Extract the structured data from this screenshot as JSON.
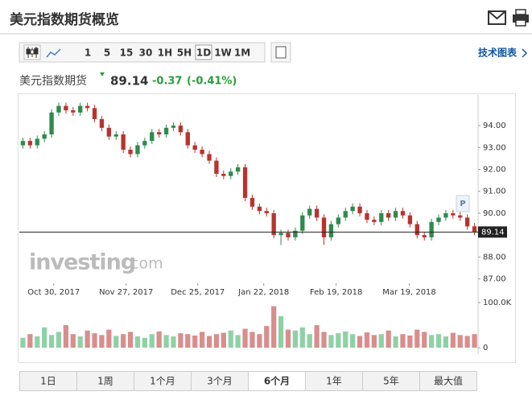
{
  "header": {
    "title": "美元指数期货概览"
  },
  "toolbar": {
    "intervals": [
      "1",
      "5",
      "15",
      "30",
      "1H",
      "5H",
      "1D",
      "1W",
      "1M"
    ],
    "selected_interval": 6,
    "link": "技术图表"
  },
  "quote": {
    "name": "美元指数期货",
    "price": 89.14,
    "change": -0.37,
    "change_pct": "(-0.41%)"
  },
  "chart_data": {
    "type": "candlestick",
    "open": [
      93.1,
      93.3,
      93.1,
      93.4,
      93.6,
      94.6,
      94.9,
      94.7,
      94.6,
      94.9,
      94.8,
      94.3,
      93.9,
      93.5,
      93.6,
      92.9,
      92.7,
      93.1,
      93.3,
      93.7,
      93.6,
      93.9,
      94.0,
      93.7,
      93.1,
      92.9,
      92.7,
      92.4,
      91.8,
      91.7,
      91.9,
      92.1,
      90.7,
      90.3,
      90.1,
      90.0,
      89.0,
      89.1,
      88.9,
      89.2,
      89.9,
      90.2,
      89.8,
      88.9,
      89.5,
      89.8,
      90.1,
      90.3,
      90.0,
      89.7,
      89.6,
      90.0,
      89.8,
      90.1,
      89.9,
      89.5,
      89.0,
      88.9,
      89.6,
      89.8,
      90.0,
      89.9,
      89.8,
      89.4
    ],
    "high": [
      93.45,
      93.45,
      93.55,
      93.75,
      94.75,
      95.05,
      95.05,
      94.85,
      95.05,
      95.05,
      94.95,
      94.45,
      94.05,
      93.75,
      93.75,
      93.05,
      93.25,
      93.45,
      93.85,
      93.85,
      94.05,
      94.15,
      94.15,
      93.85,
      93.25,
      93.05,
      92.85,
      92.55,
      91.95,
      92.05,
      92.25,
      92.25,
      90.85,
      90.45,
      90.25,
      90.15,
      89.25,
      89.25,
      89.35,
      90.05,
      90.35,
      90.35,
      89.95,
      89.65,
      89.95,
      90.25,
      90.45,
      90.45,
      90.15,
      89.85,
      90.15,
      90.15,
      90.25,
      90.25,
      90.05,
      89.65,
      89.15,
      89.75,
      89.95,
      90.15,
      90.15,
      90.05,
      89.95,
      89.55
    ],
    "low": [
      92.95,
      92.95,
      92.95,
      93.25,
      93.45,
      94.45,
      94.55,
      94.45,
      94.45,
      94.65,
      94.15,
      93.75,
      93.35,
      93.35,
      92.75,
      92.55,
      92.55,
      92.95,
      93.15,
      93.45,
      93.45,
      93.75,
      93.55,
      92.95,
      92.75,
      92.55,
      92.25,
      91.65,
      91.55,
      91.55,
      91.75,
      90.55,
      90.15,
      89.95,
      89.85,
      88.85,
      88.55,
      88.75,
      88.75,
      89.05,
      89.75,
      89.65,
      88.55,
      88.75,
      89.35,
      89.65,
      89.95,
      89.85,
      89.55,
      89.45,
      89.45,
      89.65,
      89.65,
      89.75,
      89.35,
      88.85,
      88.75,
      88.75,
      89.45,
      89.65,
      89.75,
      89.65,
      89.25,
      88.99
    ],
    "close": [
      93.3,
      93.1,
      93.4,
      93.6,
      94.6,
      94.9,
      94.7,
      94.6,
      94.9,
      94.8,
      94.3,
      93.9,
      93.5,
      93.6,
      92.9,
      92.7,
      93.1,
      93.3,
      93.7,
      93.6,
      93.9,
      94.0,
      93.7,
      93.1,
      92.9,
      92.7,
      92.4,
      91.8,
      91.7,
      91.9,
      92.1,
      90.7,
      90.3,
      90.1,
      90.0,
      89.0,
      89.1,
      88.9,
      89.2,
      89.9,
      90.2,
      89.8,
      88.9,
      89.5,
      89.8,
      90.1,
      90.3,
      90.0,
      89.7,
      89.6,
      90.0,
      89.8,
      90.1,
      89.9,
      89.5,
      89.0,
      88.9,
      89.6,
      89.8,
      90.0,
      89.9,
      89.8,
      89.4,
      89.14
    ],
    "volume": [
      22000,
      30000,
      25000,
      45000,
      28000,
      35000,
      50000,
      30000,
      25000,
      38000,
      32000,
      28000,
      40000,
      26000,
      30000,
      35000,
      25000,
      22000,
      30000,
      36000,
      28000,
      25000,
      32000,
      30000,
      27000,
      35000,
      26000,
      30000,
      33000,
      38000,
      28000,
      42000,
      35000,
      30000,
      48000,
      92000,
      70000,
      40000,
      38000,
      45000,
      30000,
      50000,
      35000,
      28000,
      32000,
      36000,
      30000,
      26000,
      34000,
      28000,
      30000,
      38000,
      25000,
      30000,
      27000,
      40000,
      35000,
      28000,
      30000,
      25000,
      33000,
      28000,
      26000,
      30000
    ],
    "xlim": [
      -0.5,
      63.5
    ],
    "xticks": [
      {
        "value": 4.3,
        "label": "Oct 30, 2017"
      },
      {
        "value": 14.4,
        "label": "Nov 27, 2017"
      },
      {
        "value": 24.4,
        "label": "Dec 25, 2017"
      },
      {
        "value": 33.6,
        "label": "Jan 22, 2018"
      },
      {
        "value": 43.7,
        "label": "Feb 19, 2018"
      },
      {
        "value": 53.9,
        "label": "Mar 19, 2018"
      }
    ],
    "ylim": [
      86.8,
      95.4
    ],
    "yticks": [
      {
        "value": 87,
        "label": "87.00"
      },
      {
        "value": 88,
        "label": "88.00"
      },
      {
        "value": 90,
        "label": "90.00"
      },
      {
        "value": 91,
        "label": "91.00"
      },
      {
        "value": 92,
        "label": "92.00"
      },
      {
        "value": 93,
        "label": "93.00"
      },
      {
        "value": 94,
        "label": "94.00"
      }
    ],
    "volume_ylim": [
      0,
      100000
    ],
    "volume_ticks": [
      {
        "value": 100000,
        "label": "100.0K"
      },
      0
    ],
    "colors": {
      "up": "#2f8a4f",
      "down": "#b8342e",
      "volume_up": "#8fd1a6",
      "volume_down": "#d98d8d"
    },
    "marker": "P"
  },
  "watermark": {
    "brand": "investing",
    "suffix": ".com"
  },
  "period_tabs": {
    "labels": [
      "1日",
      "1周",
      "1个月",
      "3个月",
      "6个月",
      "1年",
      "5年",
      "最大值"
    ],
    "selected": 4
  }
}
